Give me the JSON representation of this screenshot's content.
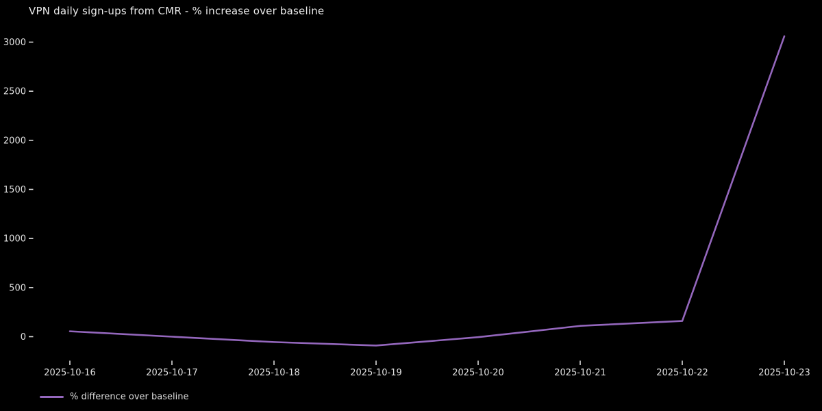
{
  "chart": {
    "title": "VPN daily sign-ups from CMR - % increase over baseline"
  },
  "legend": {
    "label": "% difference over baseline"
  },
  "colors": {
    "background": "#000000",
    "line": "#9467bd",
    "tick_text": "#e0e0e0",
    "tick_mark": "#d9d9d9",
    "title_text": "#ebebeb"
  },
  "chart_data": {
    "type": "line",
    "title": "VPN daily sign-ups from CMR - % increase over baseline",
    "x": [
      "2025-10-16",
      "2025-10-17",
      "2025-10-18",
      "2025-10-19",
      "2025-10-20",
      "2025-10-21",
      "2025-10-22",
      "2025-10-23"
    ],
    "series": [
      {
        "name": "% difference over baseline",
        "values": [
          55,
          0,
          -55,
          -90,
          -5,
          110,
          160,
          3060
        ]
      }
    ],
    "xlabel": "",
    "ylabel": "",
    "yticks": [
      0,
      500,
      1000,
      1500,
      2000,
      2500,
      3000
    ],
    "ylim": [
      -150,
      3150
    ],
    "grid": false,
    "axis_spines": false,
    "legend_position": "lower-left",
    "background": "dark"
  }
}
